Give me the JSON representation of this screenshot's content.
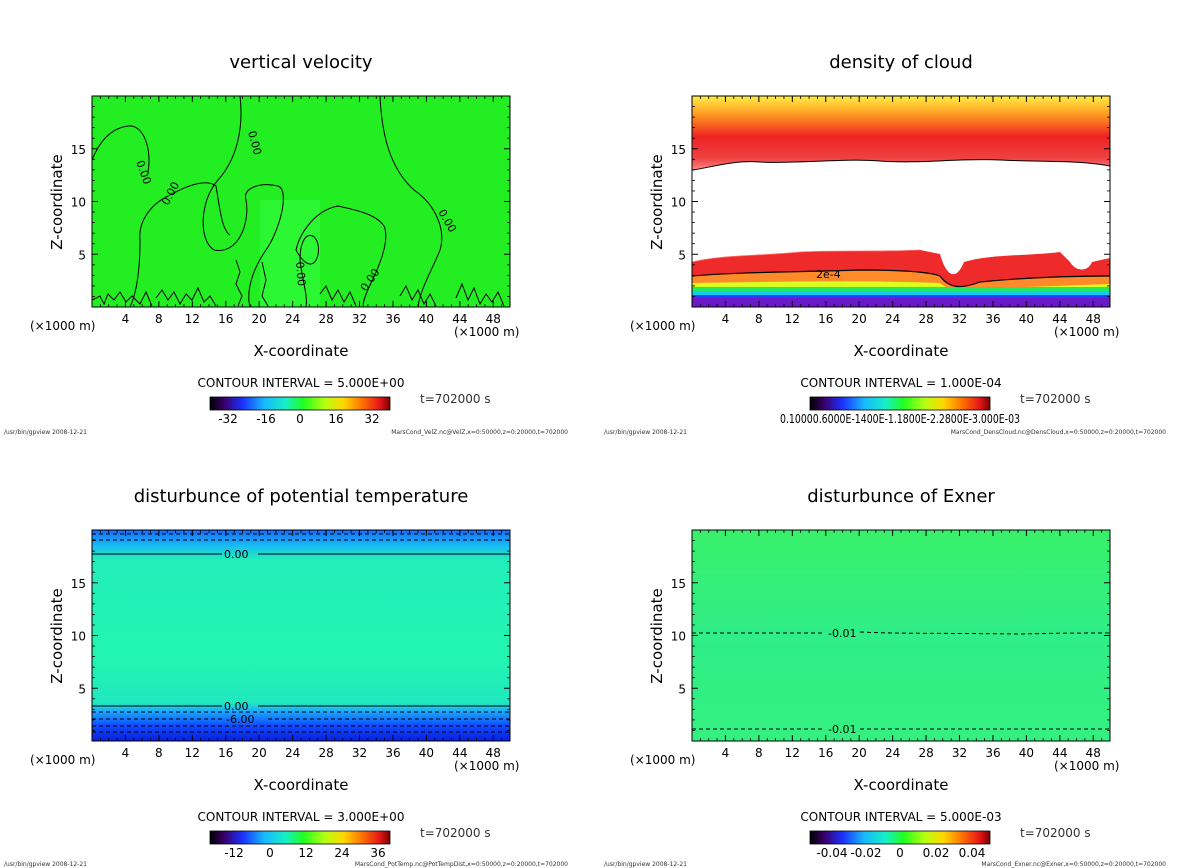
{
  "chart_data": [
    {
      "type": "heatmap",
      "title": "vertical velocity",
      "xlabel": "X-coordinate",
      "ylabel": "Z-coordinate",
      "x_unit": "(×1000 m)",
      "xlim": [
        0,
        50
      ],
      "ylim": [
        0,
        20
      ],
      "x_ticks": [
        4,
        8,
        12,
        16,
        20,
        24,
        28,
        32,
        36,
        40,
        44,
        48
      ],
      "y_ticks": [
        5,
        10,
        15
      ],
      "contour_interval": "CONTOUR INTERVAL = 5.000E+00",
      "time": "t=702000 s",
      "colorbar_ticks": [
        "-32",
        "-16",
        "0",
        "16",
        "32"
      ],
      "contour_labels": [
        "0.00",
        "0.00",
        "0.00",
        "0.00",
        "0.00",
        "0.00"
      ],
      "footer_left": "/usr/bin/gpview  2008-12-21",
      "footer_right": "MarsCond_VelZ.nc@VelZ,x=0:50000,z=0:20000,t=702000",
      "field": "uniform green (~0) with small perturbations near surface"
    },
    {
      "type": "heatmap",
      "title": "density of cloud",
      "xlabel": "X-coordinate",
      "ylabel": "Z-coordinate",
      "x_unit": "(×1000 m)",
      "xlim": [
        0,
        50
      ],
      "ylim": [
        0,
        20
      ],
      "x_ticks": [
        4,
        8,
        12,
        16,
        20,
        24,
        28,
        32,
        36,
        40,
        44,
        48
      ],
      "y_ticks": [
        5,
        10,
        15
      ],
      "contour_interval": "CONTOUR INTERVAL = 1.000E-04",
      "time": "t=702000 s",
      "colorbar_ticks": [
        "0.10000.6000E-1400E-1.1800E-2.2800E-3.000E-03"
      ],
      "contour_labels": [
        "2e-4"
      ],
      "footer_left": "/usr/bin/gpview  2008-12-21",
      "footer_right": "MarsCond_DensCloud.nc@DensCloud,x=0:50000,z=0:20000,t=702000",
      "field": "red/orange cloud layer z≈13.5–19.5, white between, red band near z≈5, colored layers below z≈3"
    },
    {
      "type": "heatmap",
      "title": "disturbunce of potential temperature",
      "xlabel": "X-coordinate",
      "ylabel": "Z-coordinate",
      "x_unit": "(×1000 m)",
      "xlim": [
        0,
        50
      ],
      "ylim": [
        0,
        20
      ],
      "x_ticks": [
        4,
        8,
        12,
        16,
        20,
        24,
        28,
        32,
        36,
        40,
        44,
        48
      ],
      "y_ticks": [
        5,
        10,
        15
      ],
      "contour_interval": "CONTOUR INTERVAL = 3.000E+00",
      "time": "t=702000 s",
      "colorbar_ticks": [
        "-12",
        "0",
        "12",
        "24",
        "36"
      ],
      "contour_labels": [
        "0.00",
        "0.00",
        "-6.00"
      ],
      "footer_left": "/usr/bin/gpview  2008-12-21",
      "footer_right": "MarsCond_PotTemp.nc@PotTempDist,x=0:50000,z=0:20000,t=702000",
      "field": "cyan-green interior, blue near top and bottom"
    },
    {
      "type": "heatmap",
      "title": "disturbunce of Exner",
      "xlabel": "X-coordinate",
      "ylabel": "Z-coordinate",
      "x_unit": "(×1000 m)",
      "xlim": [
        0,
        50
      ],
      "ylim": [
        0,
        20
      ],
      "x_ticks": [
        4,
        8,
        12,
        16,
        20,
        24,
        28,
        32,
        36,
        40,
        44,
        48
      ],
      "y_ticks": [
        5,
        10,
        15
      ],
      "contour_interval": "CONTOUR INTERVAL = 5.000E-03",
      "time": "t=702000 s",
      "colorbar_ticks": [
        "-0.04",
        "-0.02",
        "0",
        "0.02",
        "0.04"
      ],
      "contour_labels": [
        "-0.01",
        "-0.01"
      ],
      "footer_left": "/usr/bin/gpview  2008-12-21",
      "footer_right": "MarsCond_Exner.nc@Exner,x=0:50000,z=0:20000,t=702000",
      "field": "green field, slightly lighter upward"
    }
  ],
  "colors": {
    "vel_field": "#22ee22",
    "cloud_red": "#ee2222",
    "cloud_orange": "#ff9922",
    "cloud_yellow": "#ffee33",
    "pt_green": "#22f0a8",
    "pt_blue": "#1060ff",
    "exner_green": "#33ee88"
  }
}
